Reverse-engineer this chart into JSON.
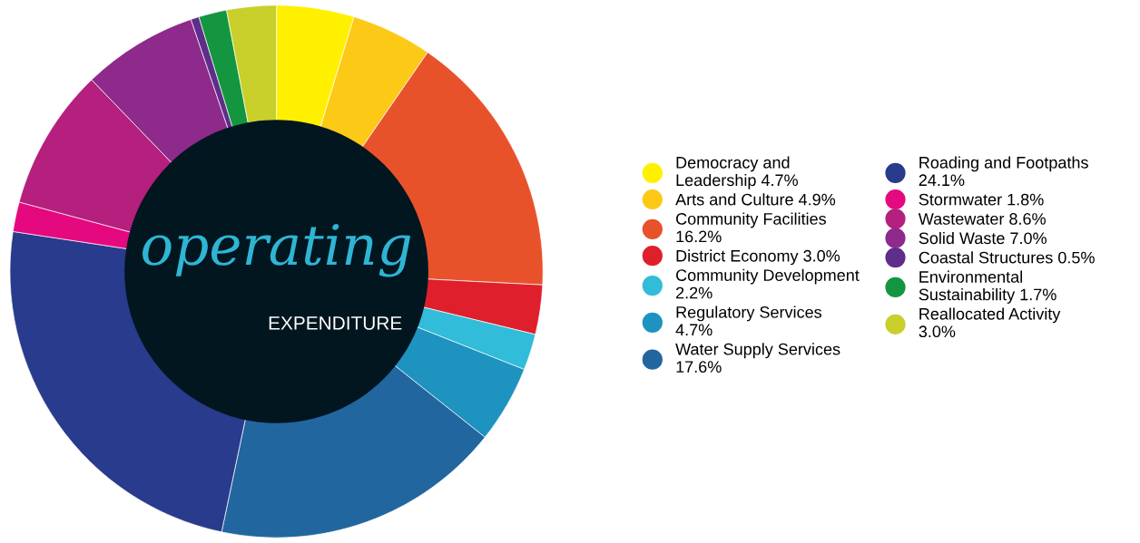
{
  "chart_data": {
    "type": "donut",
    "title": "operating",
    "subtitle": "EXPENDITURE",
    "categories": [
      "Democracy and Leadership 4.7%",
      "Arts and Culture 4.9%",
      "Community Facilities 16.2%",
      "District Economy 3.0%",
      "Community Development 2.2%",
      "Regulatory Services 4.7%",
      "Water Supply Services 17.6%",
      "Roading and Footpaths 24.1%",
      "Stormwater 1.8%",
      "Wastewater 8.6%",
      "Solid Waste 7.0%",
      "Coastal Structures 0.5%",
      "Environmental Sustainability 1.7%",
      "Reallocated Activity 3.0%"
    ],
    "values": [
      4.7,
      4.9,
      16.2,
      3.0,
      2.2,
      4.7,
      17.6,
      24.1,
      1.8,
      8.6,
      7.0,
      0.5,
      1.7,
      3.0
    ],
    "colors": [
      "#fff000",
      "#fcc917",
      "#e8522a",
      "#e01f2c",
      "#31bcd9",
      "#1e93bf",
      "#2266a0",
      "#283b8c",
      "#e5097f",
      "#b51f7e",
      "#8e2a8c",
      "#5f2d8a",
      "#13963f",
      "#c9cf2b"
    ],
    "legend": "right"
  }
}
